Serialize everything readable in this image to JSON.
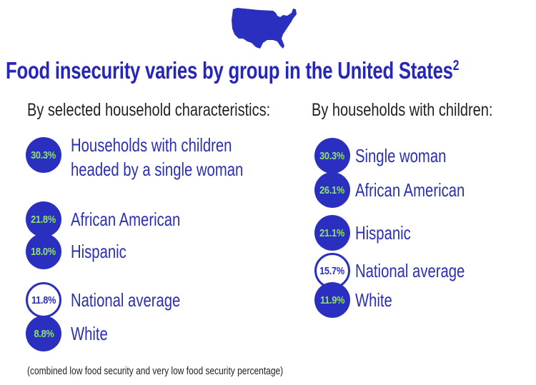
{
  "title": "Food insecurity varies by group in the United States",
  "title_superscript": "2",
  "icon": "us-map-icon",
  "colors": {
    "accent": "#2a2fc0",
    "percent_text": "#8ee36a",
    "label_text": "#2b2fb0"
  },
  "left": {
    "heading": "By selected household characteristics:",
    "items": [
      {
        "pct": "30.3%",
        "label_lines": [
          "Households with children",
          "headed by a single woman"
        ],
        "style": "filled"
      },
      {
        "pct": "21.8%",
        "label_lines": [
          "African American"
        ],
        "style": "filled"
      },
      {
        "pct": "18.0%",
        "label_lines": [
          "Hispanic"
        ],
        "style": "filled"
      },
      {
        "pct": "11.8%",
        "label_lines": [
          "National average"
        ],
        "style": "outline"
      },
      {
        "pct": "8.8%",
        "label_lines": [
          "White"
        ],
        "style": "filled"
      }
    ]
  },
  "right": {
    "heading": "By households with children:",
    "items": [
      {
        "pct": "30.3%",
        "label_lines": [
          "Single woman"
        ],
        "style": "filled"
      },
      {
        "pct": "26.1%",
        "label_lines": [
          "African American"
        ],
        "style": "filled"
      },
      {
        "pct": "21.1%",
        "label_lines": [
          "Hispanic"
        ],
        "style": "filled"
      },
      {
        "pct": "15.7%",
        "label_lines": [
          "National average"
        ],
        "style": "outline"
      },
      {
        "pct": "11.9%",
        "label_lines": [
          "White"
        ],
        "style": "filled"
      }
    ]
  },
  "footnote": "(combined low food security and very low food security percentage)"
}
